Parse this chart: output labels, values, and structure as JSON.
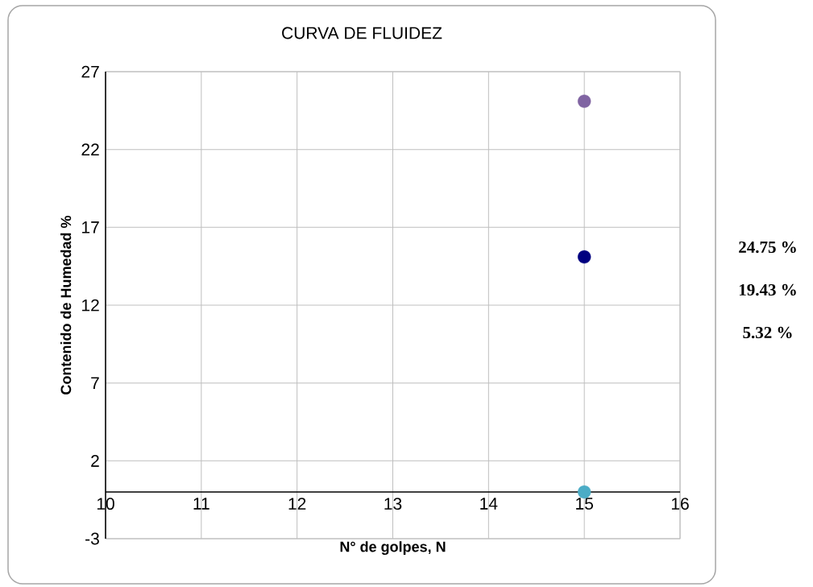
{
  "chart_data": {
    "type": "scatter",
    "title": "CURVA DE FLUIDEZ",
    "xlabel": "N° de golpes, N",
    "ylabel": "Contenido de Humedad %",
    "x": [
      15
    ],
    "series": [
      {
        "color": "#8064a2",
        "values": [
          25.1
        ]
      },
      {
        "color": "#000080",
        "values": [
          15.1
        ]
      },
      {
        "color": "#4bacc6",
        "values": [
          0
        ]
      }
    ],
    "xlim": [
      10,
      16
    ],
    "xticks": [
      10,
      11,
      12,
      13,
      14,
      15,
      16
    ],
    "ylim": [
      -3,
      27
    ],
    "yticks": [
      -3,
      2,
      7,
      12,
      17,
      22,
      27
    ],
    "grid": true,
    "marker": "circle",
    "annotations": [
      "24.75 %",
      "19.43 %",
      "5.32 %"
    ]
  }
}
